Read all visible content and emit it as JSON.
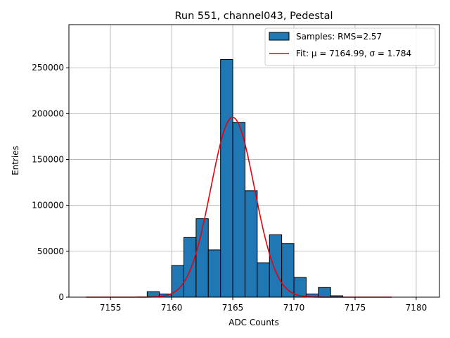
{
  "chart_data": {
    "type": "bar",
    "title": "Run 551, channel043, Pedestal",
    "xlabel": "ADC Counts",
    "ylabel": "Entries",
    "xlim": [
      7151.6,
      7181.9
    ],
    "ylim": [
      0,
      297000
    ],
    "xticks": [
      7155,
      7160,
      7165,
      7170,
      7175,
      7180
    ],
    "yticks": [
      0,
      50000,
      100000,
      150000,
      200000,
      250000
    ],
    "grid": true,
    "legend_position": "top-right",
    "bar_color": "#1f77b4",
    "fit_color": "#e8000b",
    "histogram": {
      "legend": "Samples: RMS=2.57",
      "bins": [
        {
          "x0": 7158,
          "x1": 7159,
          "value": 6000
        },
        {
          "x0": 7159,
          "x1": 7160,
          "value": 3500
        },
        {
          "x0": 7160,
          "x1": 7161,
          "value": 34500
        },
        {
          "x0": 7161,
          "x1": 7162,
          "value": 65000
        },
        {
          "x0": 7162,
          "x1": 7163,
          "value": 85500
        },
        {
          "x0": 7163,
          "x1": 7164,
          "value": 51500
        },
        {
          "x0": 7164,
          "x1": 7165,
          "value": 259000
        },
        {
          "x0": 7165,
          "x1": 7166,
          "value": 190500
        },
        {
          "x0": 7166,
          "x1": 7167,
          "value": 116000
        },
        {
          "x0": 7167,
          "x1": 7168,
          "value": 37500
        },
        {
          "x0": 7168,
          "x1": 7169,
          "value": 68000
        },
        {
          "x0": 7169,
          "x1": 7170,
          "value": 58500
        },
        {
          "x0": 7170,
          "x1": 7171,
          "value": 21500
        },
        {
          "x0": 7171,
          "x1": 7172,
          "value": 3500
        },
        {
          "x0": 7172,
          "x1": 7173,
          "value": 10500
        },
        {
          "x0": 7173,
          "x1": 7174,
          "value": 1500
        }
      ]
    },
    "fit": {
      "legend": "Fit: μ = 7164.99, σ = 1.784",
      "mu": 7164.99,
      "sigma": 1.784,
      "amplitude": 196000,
      "x_range": [
        7153,
        7178
      ]
    }
  }
}
